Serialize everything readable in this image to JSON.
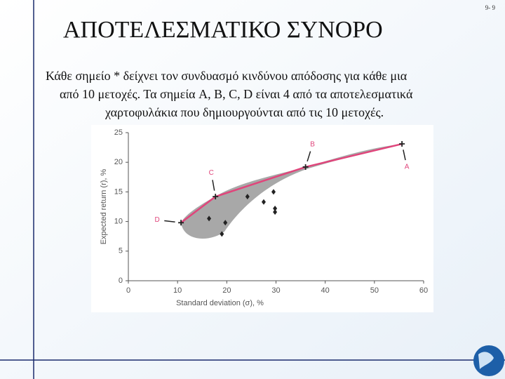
{
  "slide": {
    "title": "ΑΠΟΤΕΛΕΣΜΑΤΙΚΟ ΣΥΝΟΡΟ",
    "page_number": "9- 9",
    "text": [
      "Κάθε σημείο * δείχνει τον συνδυασμό κινδύνου απόδοσης για κάθε μια",
      "από 10 μετοχές. Τα σημεία A, B, C, D  είναι 4 από τα αποτελεσματικά",
      "χαρτοφυλάκια που δημιουργούνται από τις 10 μετοχές."
    ]
  },
  "chart_data": {
    "type": "scatter",
    "x_label": "Standard deviation (σ), %",
    "y_label": "Expected return (r), %",
    "xlim": [
      0,
      60
    ],
    "xticks": [
      0,
      10,
      20,
      30,
      40,
      50,
      60
    ],
    "ylim": [
      0,
      25
    ],
    "yticks": [
      0,
      5,
      10,
      15,
      20,
      25
    ],
    "frontier_color": "#e0457b",
    "series": [
      {
        "color": "#222222",
        "marker": "plus",
        "x": [
          10.7,
          17.7,
          36,
          55.6
        ],
        "values": [
          9.8,
          14.2,
          19.2,
          23.1
        ],
        "labels": [
          "D",
          "C",
          "B",
          "A"
        ],
        "label_color": "#e0457b"
      },
      {
        "color": "#222222",
        "marker": "diamond",
        "x": [
          16.4,
          19.7,
          19,
          24.2,
          27.5,
          29.5,
          29.8,
          29.8
        ],
        "values": [
          10.5,
          9.8,
          7.9,
          14.2,
          13.3,
          15,
          12.2,
          11.6
        ]
      }
    ]
  }
}
